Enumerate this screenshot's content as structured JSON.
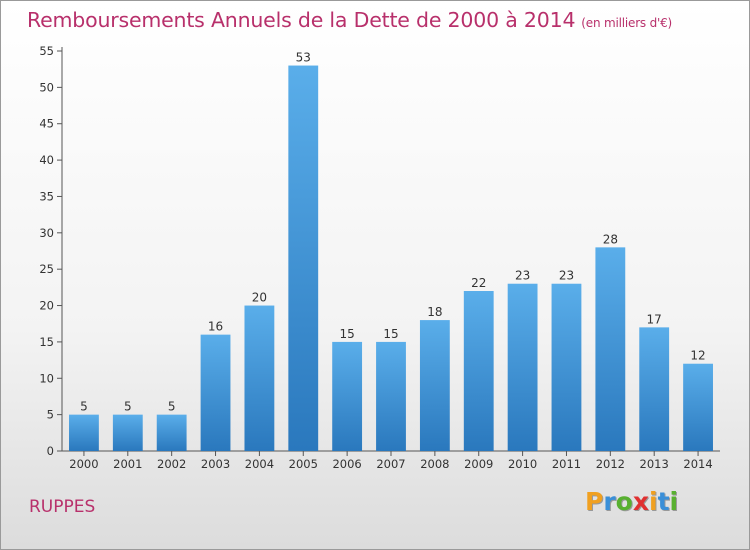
{
  "title": "Remboursements Annuels de la Dette de 2000 à 2014",
  "unit": "(en milliers d'€)",
  "commune": "RUPPES",
  "logo": {
    "letters": [
      "P",
      "r",
      "o",
      "x",
      "i",
      "t",
      "i"
    ],
    "colors": [
      "#f0a020",
      "#3a8fd8",
      "#58b030",
      "#e03030",
      "#f0a020",
      "#3a8fd8",
      "#58b030"
    ]
  },
  "colors": {
    "bar_top": "#5aaeea",
    "bar_bottom": "#2a78bd",
    "title": "#b8306b"
  },
  "chart_data": {
    "type": "bar",
    "categories": [
      "2000",
      "2001",
      "2002",
      "2003",
      "2004",
      "2005",
      "2006",
      "2007",
      "2008",
      "2009",
      "2010",
      "2011",
      "2012",
      "2013",
      "2014"
    ],
    "values": [
      5,
      5,
      5,
      16,
      20,
      53,
      15,
      15,
      18,
      22,
      23,
      23,
      28,
      17,
      12
    ],
    "ylim": [
      0,
      55
    ],
    "yticks": [
      0,
      5,
      10,
      15,
      20,
      25,
      30,
      35,
      40,
      45,
      50,
      55
    ],
    "xlabel": "",
    "ylabel": "",
    "grid": false,
    "data_labels": true
  }
}
